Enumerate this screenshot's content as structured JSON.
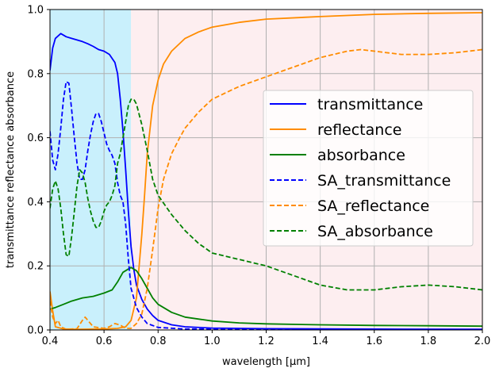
{
  "chart_data": {
    "type": "line",
    "title": "",
    "xlabel": "wavelength [μm]",
    "ylabel": "transmittance reflectance absorbance",
    "xlim": [
      0.4,
      2.0
    ],
    "ylim": [
      0.0,
      1.0
    ],
    "xticks": [
      "0.4",
      "0.6",
      "0.8",
      "1.0",
      "1.2",
      "1.4",
      "1.6",
      "1.8",
      "2.0"
    ],
    "yticks": [
      "0.0",
      "0.2",
      "0.4",
      "0.6",
      "0.8",
      "1.0"
    ],
    "grid": true,
    "legend_position": "center-right",
    "background_regions": [
      {
        "x_start": 0.4,
        "x_end": 0.7,
        "color": "#c9f0fc"
      },
      {
        "x_start": 0.7,
        "x_end": 2.0,
        "color": "#fdeef0"
      }
    ],
    "series": [
      {
        "name": "transmittance",
        "color": "#0000ff",
        "dash": "solid",
        "points": [
          [
            0.4,
            0.81
          ],
          [
            0.41,
            0.88
          ],
          [
            0.42,
            0.91
          ],
          [
            0.44,
            0.925
          ],
          [
            0.46,
            0.915
          ],
          [
            0.48,
            0.91
          ],
          [
            0.5,
            0.905
          ],
          [
            0.52,
            0.9
          ],
          [
            0.54,
            0.893
          ],
          [
            0.56,
            0.885
          ],
          [
            0.58,
            0.875
          ],
          [
            0.6,
            0.87
          ],
          [
            0.62,
            0.86
          ],
          [
            0.64,
            0.835
          ],
          [
            0.65,
            0.8
          ],
          [
            0.66,
            0.72
          ],
          [
            0.67,
            0.62
          ],
          [
            0.68,
            0.5
          ],
          [
            0.69,
            0.37
          ],
          [
            0.7,
            0.26
          ],
          [
            0.71,
            0.19
          ],
          [
            0.72,
            0.14
          ],
          [
            0.74,
            0.095
          ],
          [
            0.76,
            0.065
          ],
          [
            0.78,
            0.045
          ],
          [
            0.8,
            0.03
          ],
          [
            0.85,
            0.016
          ],
          [
            0.9,
            0.01
          ],
          [
            1.0,
            0.006
          ],
          [
            1.2,
            0.004
          ],
          [
            1.5,
            0.003
          ],
          [
            2.0,
            0.002
          ]
        ]
      },
      {
        "name": "reflectance",
        "color": "#ff8c00",
        "dash": "solid",
        "points": [
          [
            0.4,
            0.12
          ],
          [
            0.41,
            0.06
          ],
          [
            0.42,
            0.01
          ],
          [
            0.45,
            0.003
          ],
          [
            0.5,
            0.002
          ],
          [
            0.6,
            0.003
          ],
          [
            0.65,
            0.005
          ],
          [
            0.68,
            0.01
          ],
          [
            0.7,
            0.03
          ],
          [
            0.72,
            0.1
          ],
          [
            0.74,
            0.3
          ],
          [
            0.75,
            0.42
          ],
          [
            0.76,
            0.55
          ],
          [
            0.78,
            0.7
          ],
          [
            0.8,
            0.78
          ],
          [
            0.82,
            0.83
          ],
          [
            0.85,
            0.87
          ],
          [
            0.9,
            0.91
          ],
          [
            0.95,
            0.93
          ],
          [
            1.0,
            0.945
          ],
          [
            1.1,
            0.96
          ],
          [
            1.2,
            0.97
          ],
          [
            1.4,
            0.978
          ],
          [
            1.6,
            0.985
          ],
          [
            1.8,
            0.988
          ],
          [
            2.0,
            0.99
          ]
        ]
      },
      {
        "name": "absorbance",
        "color": "#008000",
        "dash": "solid",
        "points": [
          [
            0.4,
            0.065
          ],
          [
            0.42,
            0.07
          ],
          [
            0.45,
            0.08
          ],
          [
            0.48,
            0.09
          ],
          [
            0.52,
            0.1
          ],
          [
            0.56,
            0.105
          ],
          [
            0.6,
            0.115
          ],
          [
            0.63,
            0.125
          ],
          [
            0.65,
            0.15
          ],
          [
            0.67,
            0.18
          ],
          [
            0.69,
            0.19
          ],
          [
            0.7,
            0.195
          ],
          [
            0.72,
            0.185
          ],
          [
            0.74,
            0.16
          ],
          [
            0.76,
            0.13
          ],
          [
            0.78,
            0.1
          ],
          [
            0.8,
            0.08
          ],
          [
            0.85,
            0.055
          ],
          [
            0.9,
            0.04
          ],
          [
            1.0,
            0.028
          ],
          [
            1.1,
            0.022
          ],
          [
            1.2,
            0.019
          ],
          [
            1.4,
            0.016
          ],
          [
            1.6,
            0.014
          ],
          [
            1.8,
            0.013
          ],
          [
            2.0,
            0.012
          ]
        ]
      },
      {
        "name": "SA_transmittance",
        "color": "#0000ff",
        "dash": "dashed",
        "points": [
          [
            0.4,
            0.62
          ],
          [
            0.41,
            0.53
          ],
          [
            0.42,
            0.5
          ],
          [
            0.43,
            0.55
          ],
          [
            0.44,
            0.63
          ],
          [
            0.45,
            0.72
          ],
          [
            0.46,
            0.775
          ],
          [
            0.47,
            0.77
          ],
          [
            0.48,
            0.69
          ],
          [
            0.49,
            0.6
          ],
          [
            0.5,
            0.52
          ],
          [
            0.51,
            0.47
          ],
          [
            0.52,
            0.47
          ],
          [
            0.53,
            0.5
          ],
          [
            0.54,
            0.56
          ],
          [
            0.55,
            0.61
          ],
          [
            0.56,
            0.65
          ],
          [
            0.57,
            0.675
          ],
          [
            0.58,
            0.675
          ],
          [
            0.59,
            0.65
          ],
          [
            0.6,
            0.615
          ],
          [
            0.61,
            0.58
          ],
          [
            0.62,
            0.56
          ],
          [
            0.63,
            0.545
          ],
          [
            0.64,
            0.52
          ],
          [
            0.65,
            0.46
          ],
          [
            0.66,
            0.42
          ],
          [
            0.67,
            0.4
          ],
          [
            0.68,
            0.33
          ],
          [
            0.69,
            0.22
          ],
          [
            0.7,
            0.13
          ],
          [
            0.72,
            0.07
          ],
          [
            0.74,
            0.04
          ],
          [
            0.76,
            0.02
          ],
          [
            0.8,
            0.008
          ],
          [
            0.9,
            0.003
          ],
          [
            2.0,
            0.001
          ]
        ]
      },
      {
        "name": "SA_reflectance",
        "color": "#ff8c00",
        "dash": "dashed",
        "points": [
          [
            0.4,
            0.09
          ],
          [
            0.41,
            0.04
          ],
          [
            0.42,
            0.02
          ],
          [
            0.43,
            0.03
          ],
          [
            0.44,
            0.01
          ],
          [
            0.46,
            0.002
          ],
          [
            0.5,
            0.004
          ],
          [
            0.52,
            0.03
          ],
          [
            0.53,
            0.04
          ],
          [
            0.54,
            0.03
          ],
          [
            0.56,
            0.01
          ],
          [
            0.6,
            0.005
          ],
          [
            0.62,
            0.01
          ],
          [
            0.64,
            0.02
          ],
          [
            0.66,
            0.015
          ],
          [
            0.68,
            0.005
          ],
          [
            0.7,
            0.005
          ],
          [
            0.72,
            0.02
          ],
          [
            0.74,
            0.05
          ],
          [
            0.76,
            0.13
          ],
          [
            0.78,
            0.25
          ],
          [
            0.8,
            0.38
          ],
          [
            0.82,
            0.47
          ],
          [
            0.85,
            0.55
          ],
          [
            0.88,
            0.6
          ],
          [
            0.9,
            0.63
          ],
          [
            0.95,
            0.68
          ],
          [
            1.0,
            0.72
          ],
          [
            1.1,
            0.76
          ],
          [
            1.2,
            0.79
          ],
          [
            1.3,
            0.82
          ],
          [
            1.4,
            0.85
          ],
          [
            1.5,
            0.87
          ],
          [
            1.55,
            0.875
          ],
          [
            1.6,
            0.87
          ],
          [
            1.7,
            0.86
          ],
          [
            1.8,
            0.86
          ],
          [
            1.9,
            0.865
          ],
          [
            2.0,
            0.875
          ]
        ]
      },
      {
        "name": "SA_absorbance",
        "color": "#008000",
        "dash": "dashed",
        "points": [
          [
            0.4,
            0.38
          ],
          [
            0.41,
            0.44
          ],
          [
            0.42,
            0.465
          ],
          [
            0.43,
            0.44
          ],
          [
            0.44,
            0.38
          ],
          [
            0.45,
            0.3
          ],
          [
            0.46,
            0.235
          ],
          [
            0.47,
            0.23
          ],
          [
            0.48,
            0.29
          ],
          [
            0.49,
            0.37
          ],
          [
            0.5,
            0.45
          ],
          [
            0.51,
            0.5
          ],
          [
            0.52,
            0.49
          ],
          [
            0.53,
            0.46
          ],
          [
            0.54,
            0.41
          ],
          [
            0.55,
            0.37
          ],
          [
            0.56,
            0.34
          ],
          [
            0.57,
            0.32
          ],
          [
            0.58,
            0.32
          ],
          [
            0.59,
            0.34
          ],
          [
            0.6,
            0.37
          ],
          [
            0.61,
            0.39
          ],
          [
            0.62,
            0.4
          ],
          [
            0.63,
            0.42
          ],
          [
            0.64,
            0.45
          ],
          [
            0.65,
            0.52
          ],
          [
            0.66,
            0.55
          ],
          [
            0.67,
            0.6
          ],
          [
            0.68,
            0.65
          ],
          [
            0.69,
            0.7
          ],
          [
            0.7,
            0.72
          ],
          [
            0.71,
            0.72
          ],
          [
            0.72,
            0.705
          ],
          [
            0.74,
            0.64
          ],
          [
            0.76,
            0.56
          ],
          [
            0.78,
            0.47
          ],
          [
            0.8,
            0.42
          ],
          [
            0.85,
            0.36
          ],
          [
            0.9,
            0.31
          ],
          [
            0.95,
            0.27
          ],
          [
            1.0,
            0.24
          ],
          [
            1.1,
            0.22
          ],
          [
            1.2,
            0.2
          ],
          [
            1.3,
            0.17
          ],
          [
            1.4,
            0.14
          ],
          [
            1.5,
            0.125
          ],
          [
            1.6,
            0.125
          ],
          [
            1.7,
            0.135
          ],
          [
            1.8,
            0.14
          ],
          [
            1.9,
            0.135
          ],
          [
            2.0,
            0.125
          ]
        ]
      }
    ]
  }
}
